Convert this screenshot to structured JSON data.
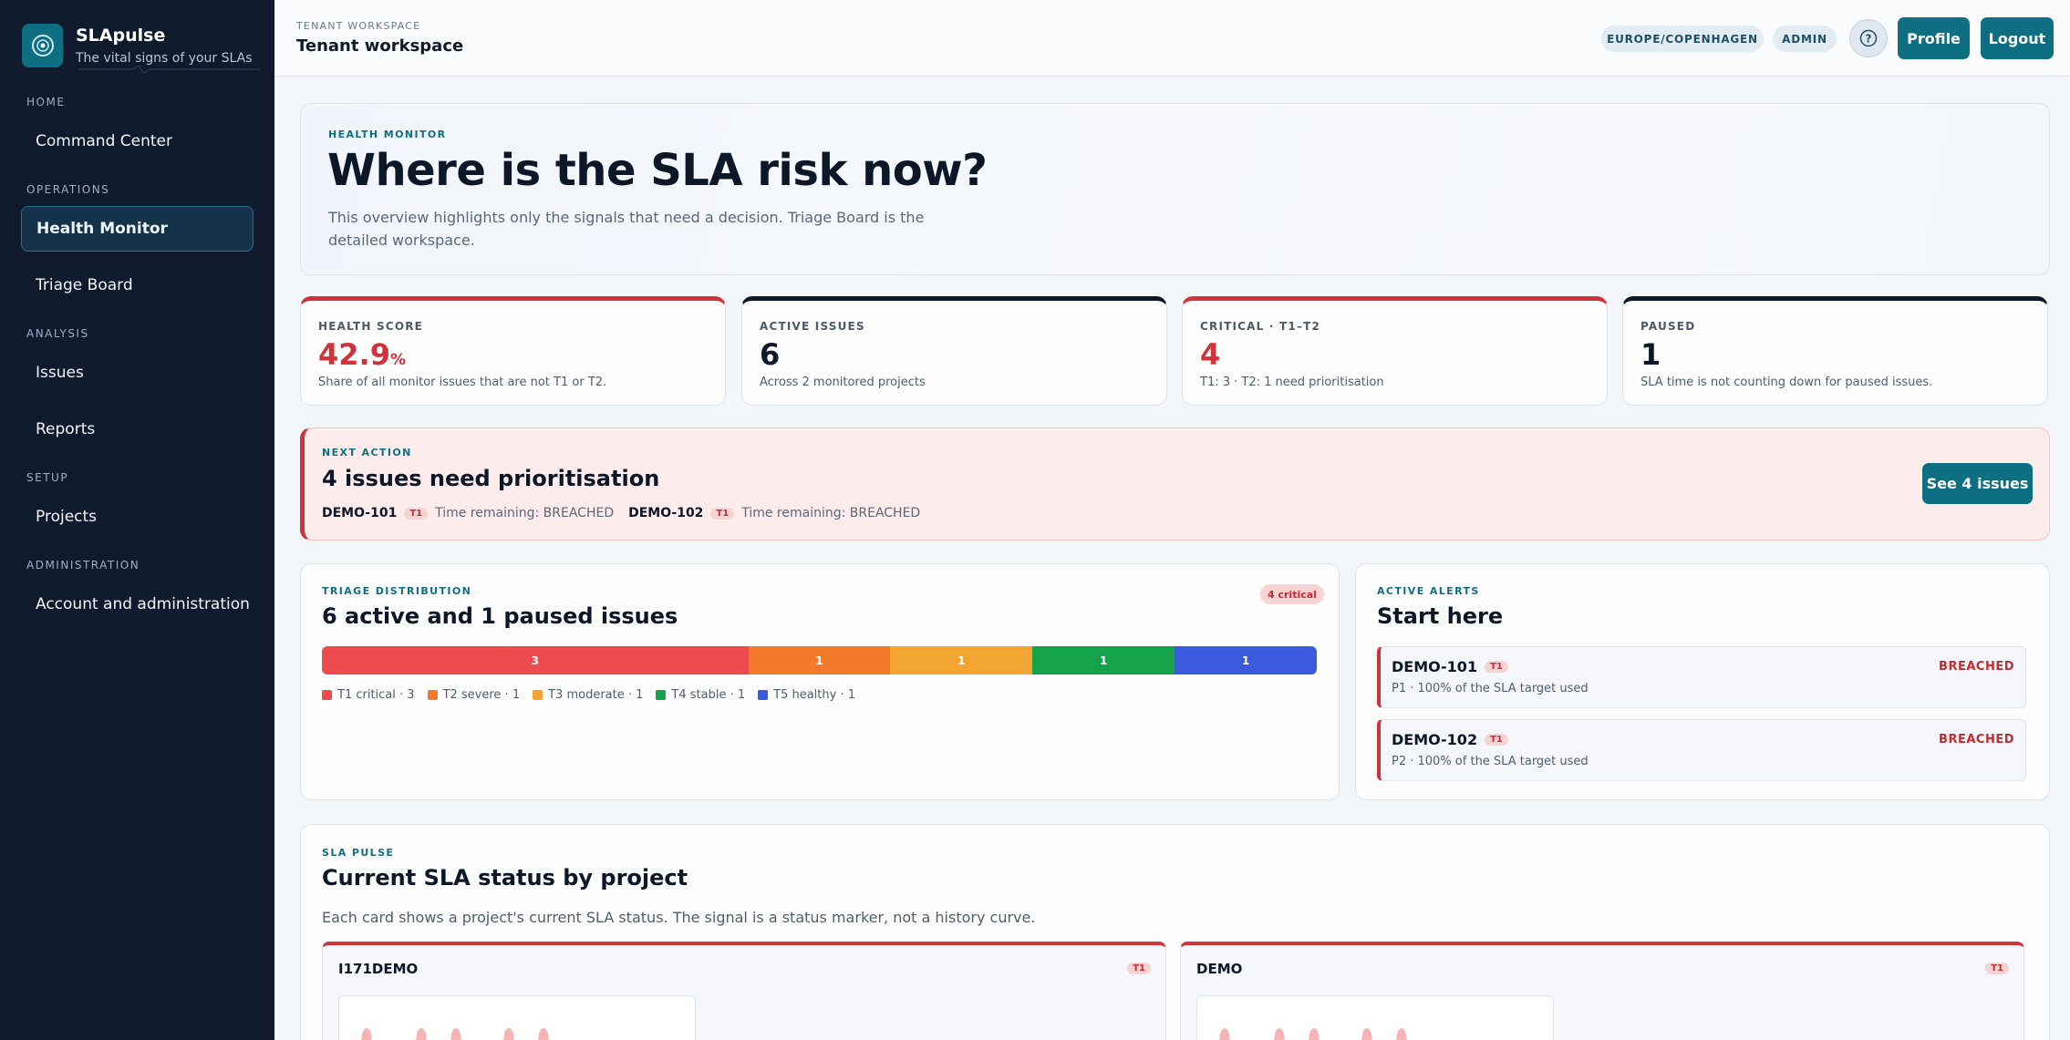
{
  "app": {
    "name": "SLApulse",
    "tagline": "The vital signs of your SLAs"
  },
  "sidebar": {
    "sections": [
      {
        "label": "HOME",
        "items": [
          {
            "label": "Command Center",
            "active": false
          }
        ]
      },
      {
        "label": "OPERATIONS",
        "items": [
          {
            "label": "Health Monitor",
            "active": true
          },
          {
            "label": "Triage Board",
            "active": false
          }
        ]
      },
      {
        "label": "ANALYSIS",
        "items": [
          {
            "label": "Issues",
            "active": false
          },
          {
            "label": "Reports",
            "active": false
          }
        ]
      },
      {
        "label": "SETUP",
        "items": [
          {
            "label": "Projects",
            "active": false
          }
        ]
      },
      {
        "label": "ADMINISTRATION",
        "items": [
          {
            "label": "Account and administration",
            "active": false
          }
        ]
      }
    ]
  },
  "header": {
    "eyebrow": "TENANT WORKSPACE",
    "title": "Tenant workspace",
    "timezone": "EUROPE/COPENHAGEN",
    "role": "ADMIN",
    "help_label": "?",
    "profile_label": "Profile",
    "logout_label": "Logout"
  },
  "hero": {
    "eyebrow": "HEALTH MONITOR",
    "title": "Where is the SLA risk now?",
    "description": "This overview highlights only the signals that need a decision. Triage Board is the detailed workspace."
  },
  "stats": [
    {
      "label": "HEALTH SCORE",
      "value": "42.9",
      "unit": "%",
      "sub": "Share of all monitor issues that are not T1 or T2.",
      "accent": "#d0343a",
      "value_red": true
    },
    {
      "label": "ACTIVE ISSUES",
      "value": "6",
      "unit": "",
      "sub": "Across 2 monitored projects",
      "accent": "#0c1727",
      "value_red": false
    },
    {
      "label": "CRITICAL · T1–T2",
      "value": "4",
      "unit": "",
      "sub": "T1: 3 · T2: 1 need prioritisation",
      "accent": "#d0343a",
      "value_red": true
    },
    {
      "label": "PAUSED",
      "value": "1",
      "unit": "",
      "sub": "SLA time is not counting down for paused issues.",
      "accent": "#0c1727",
      "value_red": false
    }
  ],
  "next_action": {
    "eyebrow": "NEXT ACTION",
    "title": "4 issues need prioritisation",
    "items": [
      {
        "id": "DEMO-101",
        "tier": "T1",
        "text": "Time remaining: BREACHED"
      },
      {
        "id": "DEMO-102",
        "tier": "T1",
        "text": "Time remaining: BREACHED"
      }
    ],
    "button_label": "See 4 issues"
  },
  "triage": {
    "eyebrow": "TRIAGE DISTRIBUTION",
    "title": "6 active and 1 paused issues",
    "badge": "4 critical",
    "chart_data": {
      "type": "bar",
      "categories": [
        "T1 critical",
        "T2 severe",
        "T3 moderate",
        "T4 stable",
        "T5 healthy"
      ],
      "values": [
        3,
        1,
        1,
        1,
        1
      ],
      "colors": [
        "#ee4b4f",
        "#f27a2a",
        "#f2a531",
        "#14a24a",
        "#3a5bdc"
      ]
    },
    "legend": [
      "T1 critical · 3",
      "T2 severe · 1",
      "T3 moderate · 1",
      "T4 stable · 1",
      "T5 healthy · 1"
    ]
  },
  "alerts": {
    "eyebrow": "ACTIVE ALERTS",
    "title": "Start here",
    "items": [
      {
        "id": "DEMO-101",
        "tier": "T1",
        "sub": "P1 · 100% of the SLA target used",
        "status": "BREACHED"
      },
      {
        "id": "DEMO-102",
        "tier": "T1",
        "sub": "P2 · 100% of the SLA target used",
        "status": "BREACHED"
      }
    ]
  },
  "pulse": {
    "eyebrow": "SLA PULSE",
    "title": "Current SLA status by project",
    "description": "Each card shows a project's current SLA status. The signal is a status marker, not a history curve.",
    "projects": [
      {
        "name": "I171DEMO",
        "tier": "T1"
      },
      {
        "name": "DEMO",
        "tier": "T1"
      }
    ]
  }
}
